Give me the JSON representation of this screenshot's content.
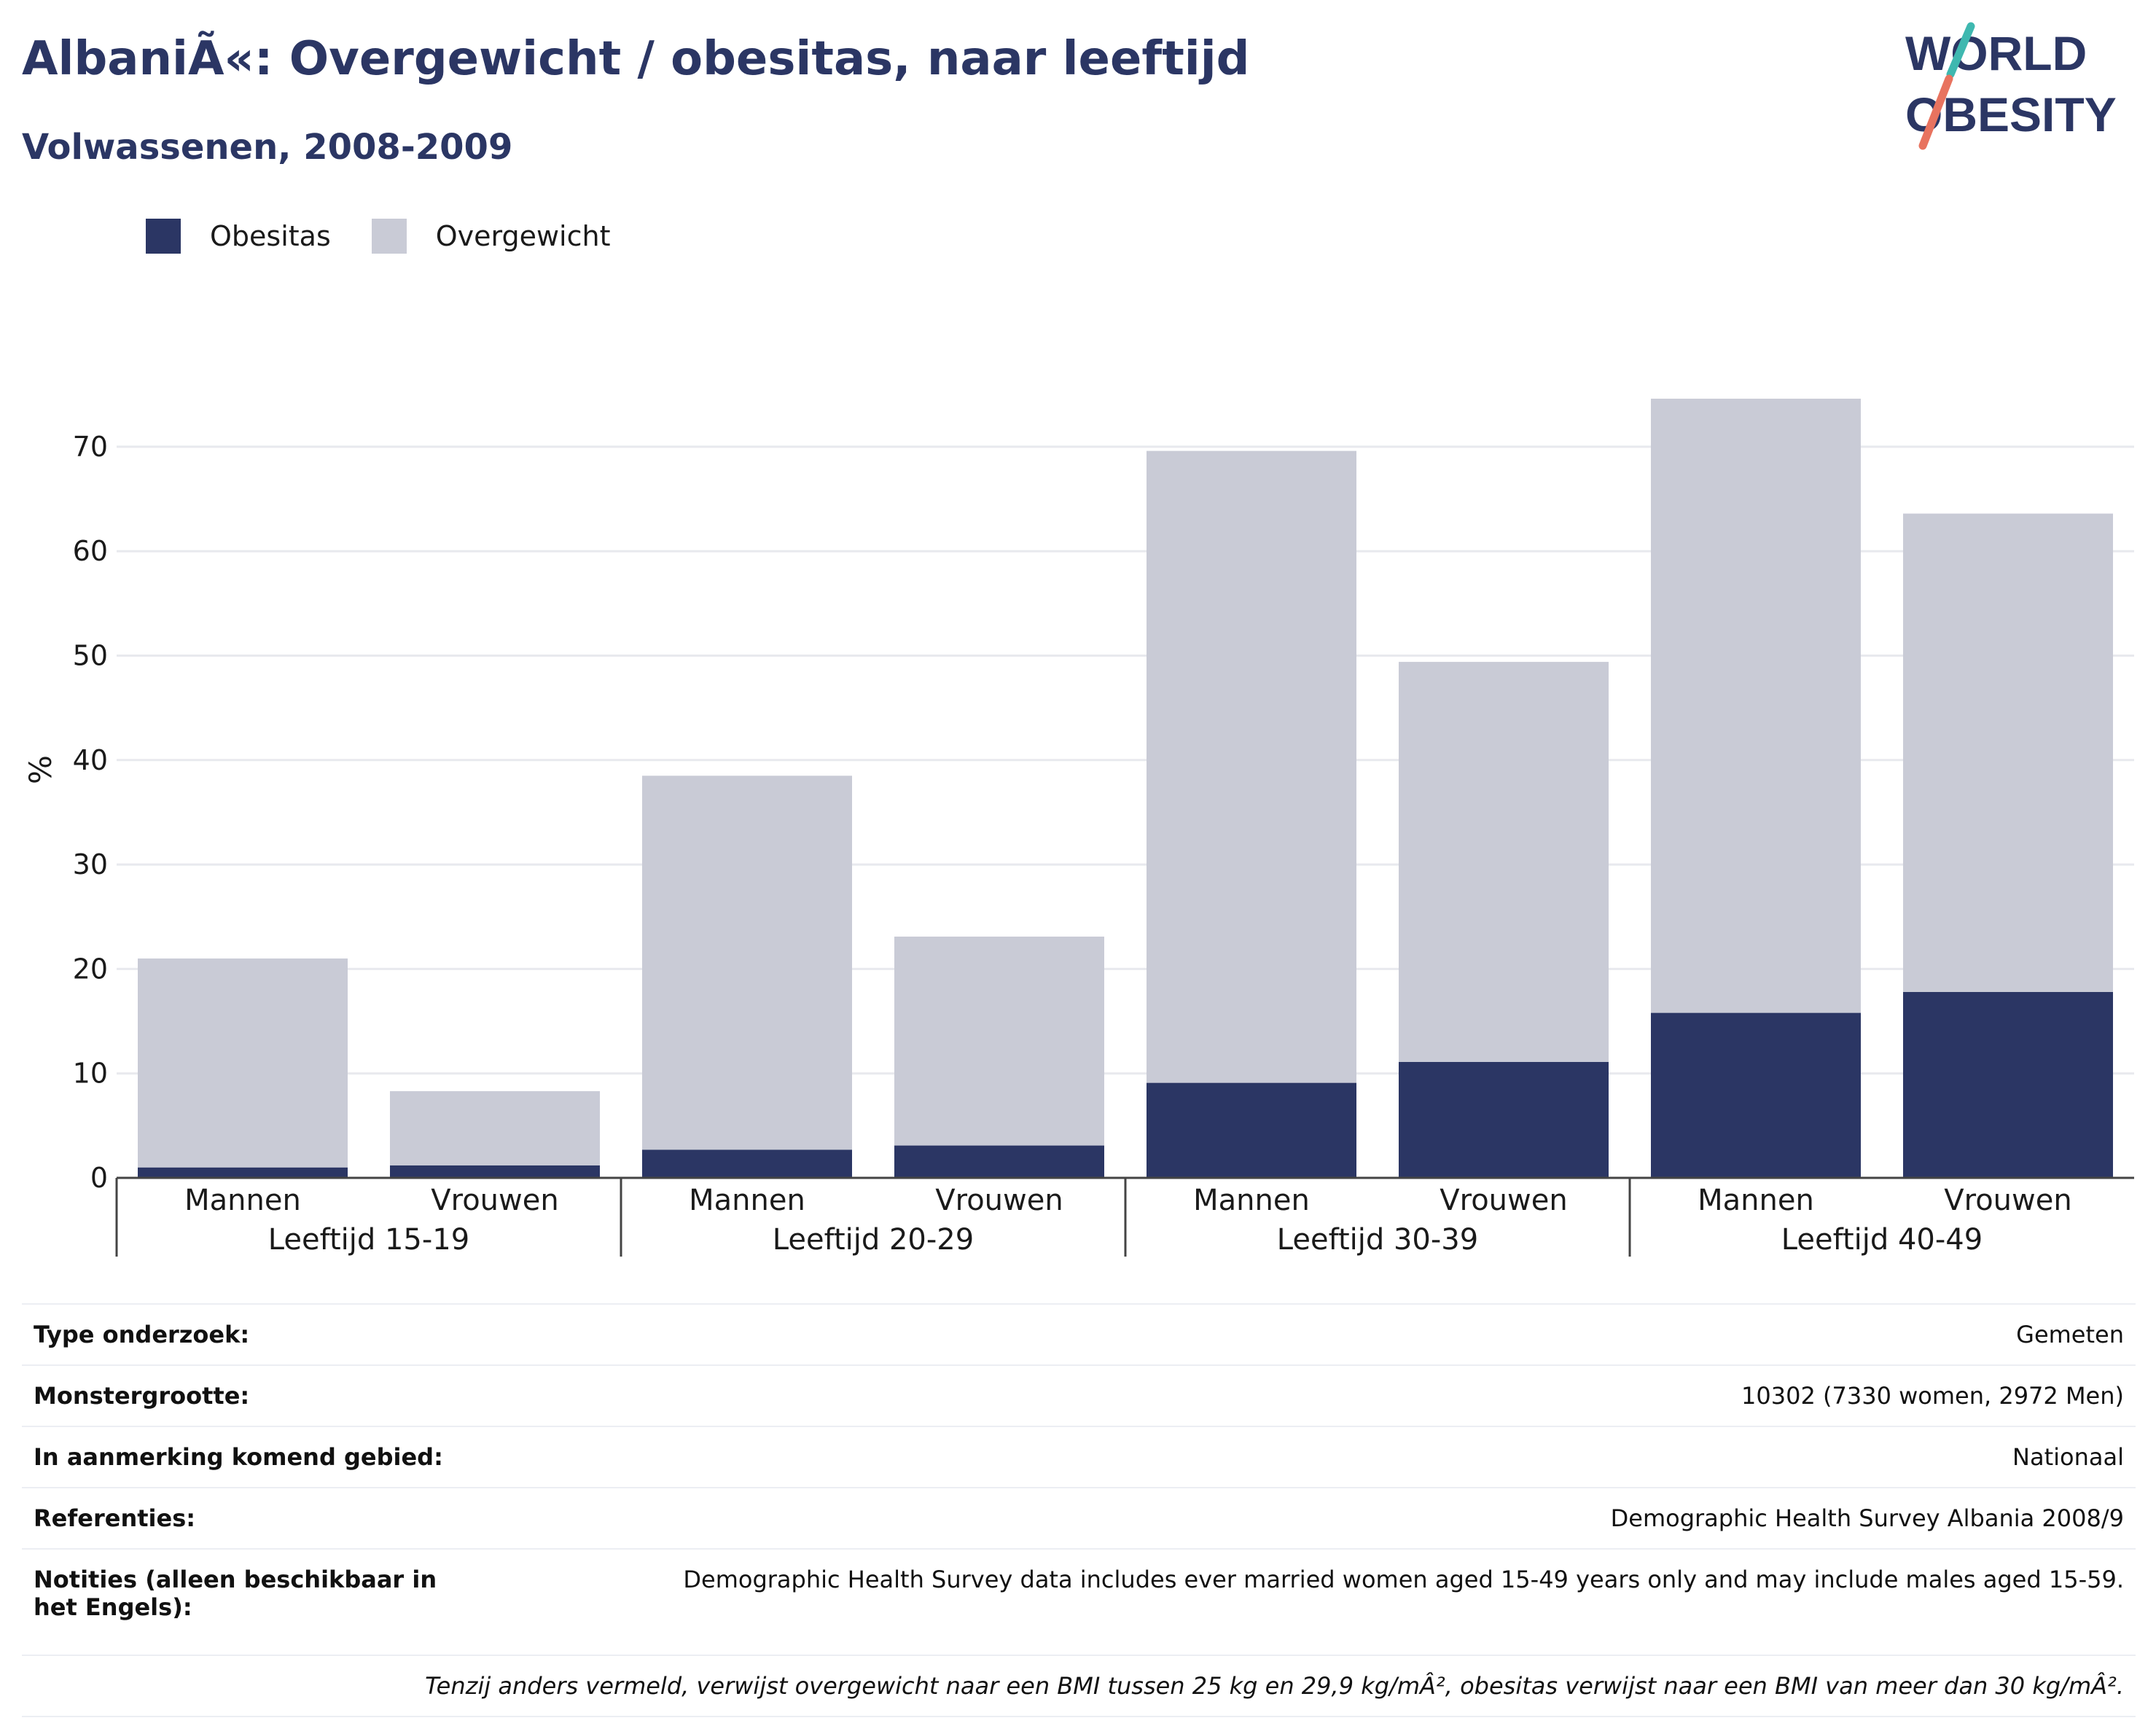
{
  "title": "AlbaniÃ«: Overgewicht / obesitas, naar leeftijd",
  "subtitle": "Volwassenen, 2008-2009",
  "logo": {
    "line1": "WORLD",
    "line2": "OBESITY"
  },
  "colors": {
    "title": "#2b3664",
    "obesitas": "#2b3664",
    "overgewicht": "#c9cbd6",
    "grid": "#e8e9ee",
    "axis": "#444444"
  },
  "chart_data": {
    "type": "bar",
    "stacked": true,
    "ylabel": "%",
    "ylim": [
      0,
      75
    ],
    "yticks": [
      0,
      10,
      20,
      30,
      40,
      50,
      60,
      70
    ],
    "grid": true,
    "legend_position": "top-left",
    "groups": [
      "Leeftijd 15-19",
      "Leeftijd 20-29",
      "Leeftijd 30-39",
      "Leeftijd 40-49"
    ],
    "categories": [
      "Mannen",
      "Vrouwen",
      "Mannen",
      "Vrouwen",
      "Mannen",
      "Vrouwen",
      "Mannen",
      "Vrouwen"
    ],
    "series": [
      {
        "name": "Obesitas",
        "values": [
          1.0,
          1.2,
          2.7,
          3.1,
          9.1,
          11.1,
          15.8,
          17.8
        ]
      },
      {
        "name": "Overgewicht",
        "values": [
          20.0,
          7.1,
          35.8,
          20.0,
          60.5,
          38.3,
          58.8,
          45.8
        ]
      }
    ]
  },
  "meta": [
    {
      "key": "Type onderzoek:",
      "value": "Gemeten"
    },
    {
      "key": "Monstergrootte:",
      "value": "10302 (7330 women, 2972 Men)"
    },
    {
      "key": "In aanmerking komend gebied:",
      "value": "Nationaal"
    },
    {
      "key": "Referenties:",
      "value": "Demographic Health Survey Albania 2008/9"
    },
    {
      "key": "Notities (alleen beschikbaar in het Engels):",
      "value": "Demographic Health Survey data includes ever married women aged 15-49 years only and may include males aged 15-59."
    }
  ],
  "footnote": "Tenzij anders vermeld, verwijst overgewicht naar een BMI tussen 25 kg en 29,9 kg/mÂ², obesitas verwijst naar een BMI van meer dan 30 kg/mÂ²."
}
